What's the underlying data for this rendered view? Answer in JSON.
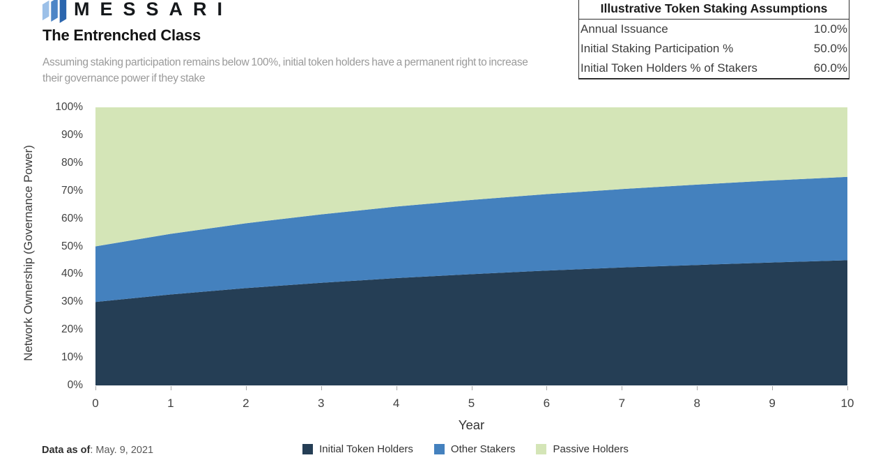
{
  "header": {
    "brand": "MESSARI",
    "title": "The Entrenched Class",
    "subtitle": "Assuming staking participation remains below 100%, initial token holders have a permanent right to increase their governance power if they stake"
  },
  "assumptions_table": {
    "title": "Illustrative Token Staking Assumptions",
    "rows": [
      {
        "label": "Annual Issuance",
        "value": "10.0%"
      },
      {
        "label": "Initial Staking Participation %",
        "value": "50.0%"
      },
      {
        "label": "Initial Token Holders % of Stakers",
        "value": "60.0%"
      }
    ]
  },
  "chart_data": {
    "type": "area",
    "stacked": true,
    "title": "The Entrenched Class",
    "xlabel": "Year",
    "ylabel": "Network Ownership (Governance Power)",
    "x": [
      0,
      1,
      2,
      3,
      4,
      5,
      6,
      7,
      8,
      9,
      10
    ],
    "x_tick_labels": [
      "0",
      "1",
      "2",
      "3",
      "4",
      "5",
      "6",
      "7",
      "8",
      "9",
      "10"
    ],
    "y_tick_labels": [
      "0%",
      "10%",
      "20%",
      "30%",
      "40%",
      "50%",
      "60%",
      "70%",
      "80%",
      "90%",
      "100%"
    ],
    "ylim": [
      0,
      100
    ],
    "grid": false,
    "legend_position": "bottom",
    "series": [
      {
        "name": "Initial Token Holders",
        "color": "#253E55",
        "values": [
          30.0,
          32.7,
          35.0,
          36.9,
          38.6,
          40.0,
          41.3,
          42.4,
          43.3,
          44.2,
          45.0
        ]
      },
      {
        "name": "Other Stakers",
        "color": "#4481BE",
        "values": [
          20.0,
          21.8,
          23.3,
          24.6,
          25.7,
          26.7,
          27.5,
          28.2,
          28.9,
          29.5,
          30.0
        ]
      },
      {
        "name": "Passive Holders",
        "color": "#D4E5B7",
        "values": [
          50.0,
          45.5,
          41.7,
          38.5,
          35.7,
          33.3,
          31.2,
          29.4,
          27.8,
          26.3,
          25.0
        ]
      }
    ]
  },
  "footer": {
    "data_as_of_label": "Data as of",
    "data_as_of_value": ": May. 9, 2021"
  }
}
